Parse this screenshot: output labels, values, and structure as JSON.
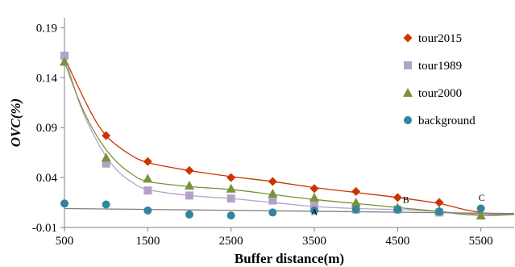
{
  "chart_data": {
    "type": "scatter",
    "title": "",
    "xlabel": "Buffer distance(m)",
    "ylabel": "OVC(%)",
    "xlim": [
      500,
      5900
    ],
    "ylim": [
      -0.01,
      0.2
    ],
    "xticks": [
      500,
      1500,
      2500,
      3500,
      4500,
      5500
    ],
    "xtick_labels": [
      "500",
      "1500",
      "2500",
      "3500",
      "4500",
      "5500"
    ],
    "yticks": [
      -0.01,
      0.04,
      0.09,
      0.14,
      0.19
    ],
    "ytick_labels": [
      "-0.01",
      "0.04",
      "0.09",
      "0.14",
      "0.19"
    ],
    "grid": false,
    "legend_position": "right",
    "series": [
      {
        "name": "tour2015",
        "marker": "diamond",
        "color": "#cc3300",
        "x": [
          500,
          1000,
          1500,
          2000,
          2500,
          3000,
          3500,
          4000,
          4500,
          5000
        ],
        "values": [
          0.16,
          0.082,
          0.056,
          0.047,
          0.04,
          0.036,
          0.029,
          0.026,
          0.02,
          0.015
        ],
        "trend_x": [
          500,
          800,
          1000,
          1250,
          1500,
          2000,
          2500,
          3000,
          3500,
          4000,
          4500,
          5000,
          5300,
          5600,
          5900
        ],
        "trend_y": [
          0.16,
          0.108,
          0.082,
          0.065,
          0.055,
          0.047,
          0.041,
          0.036,
          0.03,
          0.025,
          0.02,
          0.014,
          0.008,
          0.004,
          0.004
        ]
      },
      {
        "name": "tour1989",
        "marker": "square",
        "color": "#b3a2c7",
        "x": [
          500,
          1000,
          1500,
          2000,
          2500,
          3000,
          3500,
          4000,
          4500,
          5000
        ],
        "values": [
          0.162,
          0.054,
          0.027,
          0.022,
          0.019,
          0.017,
          0.012,
          0.008,
          0.008,
          0.005
        ],
        "trend_x": [
          500,
          700,
          900,
          1100,
          1300,
          1500,
          2000,
          2500,
          3000,
          3500,
          4000,
          4500,
          5000,
          5300,
          5600,
          5900
        ],
        "trend_y": [
          0.162,
          0.11,
          0.075,
          0.05,
          0.036,
          0.028,
          0.022,
          0.019,
          0.015,
          0.011,
          0.009,
          0.008,
          0.006,
          0.004,
          0.003,
          0.003
        ]
      },
      {
        "name": "tour2000",
        "marker": "triangle",
        "color": "#77933c",
        "x": [
          500,
          1000,
          1500,
          2000,
          2500,
          3000,
          3500,
          4000,
          4500,
          5000,
          5500
        ],
        "values": [
          0.156,
          0.06,
          0.039,
          0.032,
          0.029,
          0.024,
          0.02,
          0.015,
          0.01,
          0.007,
          0.002
        ],
        "trend_x": [
          500,
          700,
          900,
          1100,
          1300,
          1500,
          2000,
          2500,
          3000,
          3500,
          4000,
          4500,
          5000,
          5300,
          5600,
          5900
        ],
        "trend_y": [
          0.156,
          0.112,
          0.08,
          0.058,
          0.044,
          0.036,
          0.031,
          0.028,
          0.023,
          0.018,
          0.014,
          0.01,
          0.006,
          0.003,
          0.002,
          0.003
        ]
      },
      {
        "name": "background",
        "marker": "circle",
        "color": "#31859c",
        "x": [
          500,
          1000,
          1500,
          2000,
          2500,
          3000,
          3500,
          4000,
          4500,
          5000,
          5500
        ],
        "values": [
          0.014,
          0.013,
          0.007,
          0.003,
          0.002,
          0.005,
          0.007,
          0.008,
          0.008,
          0.006,
          0.009
        ],
        "trend_x": [
          500,
          5900
        ],
        "trend_y": [
          0.009,
          0.004
        ]
      }
    ],
    "annotations": [
      {
        "text": "A",
        "x": 3500,
        "y": 0.0025
      },
      {
        "text": "B",
        "x": 4600,
        "y": 0.0145
      },
      {
        "text": "C",
        "x": 5510,
        "y": 0.0165
      }
    ]
  }
}
